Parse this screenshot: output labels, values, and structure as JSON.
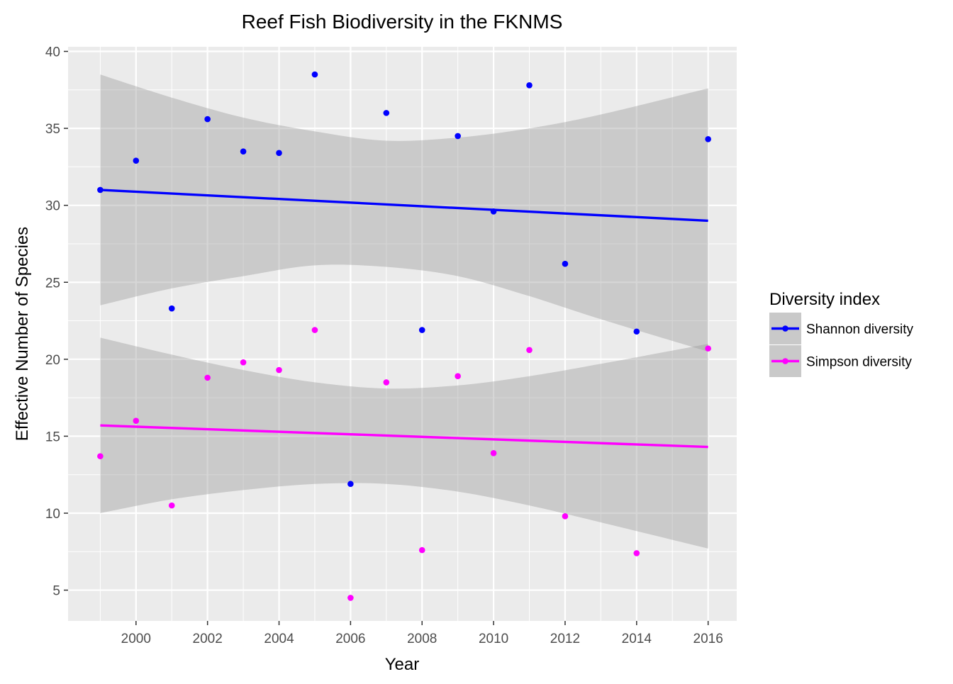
{
  "chart_data": {
    "type": "scatter",
    "title": "Reef Fish Biodiversity in the FKNMS",
    "xlabel": "Year",
    "ylabel": "Effective Number of Species",
    "xlim": [
      1998.1,
      2016.8
    ],
    "ylim": [
      3.0,
      40.3
    ],
    "x_ticks": [
      2000,
      2002,
      2004,
      2006,
      2008,
      2010,
      2012,
      2014,
      2016
    ],
    "y_ticks": [
      5,
      10,
      15,
      20,
      25,
      30,
      35,
      40
    ],
    "grid": true,
    "legend": {
      "title": "Diversity index",
      "position": "right"
    },
    "series": [
      {
        "name": "Shannon diversity",
        "color": "#0000ff",
        "points": [
          [
            1999,
            31.0
          ],
          [
            2000,
            32.9
          ],
          [
            2001,
            23.3
          ],
          [
            2002,
            35.6
          ],
          [
            2003,
            33.5
          ],
          [
            2004,
            33.4
          ],
          [
            2005,
            38.5
          ],
          [
            2006,
            11.9
          ],
          [
            2007,
            36.0
          ],
          [
            2008,
            21.9
          ],
          [
            2009,
            34.5
          ],
          [
            2010,
            29.6
          ],
          [
            2011,
            37.8
          ],
          [
            2012,
            26.2
          ],
          [
            2014,
            21.8
          ],
          [
            2016,
            34.3
          ]
        ],
        "trend": {
          "start": [
            1999,
            31.0
          ],
          "end": [
            2016,
            29.0
          ]
        },
        "band": [
          [
            1999,
            23.5,
            38.5
          ],
          [
            2001,
            24.6,
            37.0
          ],
          [
            2003,
            25.4,
            35.7
          ],
          [
            2005,
            26.1,
            34.8
          ],
          [
            2007,
            26.0,
            34.2
          ],
          [
            2009,
            25.4,
            34.4
          ],
          [
            2011,
            24.1,
            35.0
          ],
          [
            2013,
            22.6,
            35.9
          ],
          [
            2016,
            20.5,
            37.6
          ]
        ]
      },
      {
        "name": "Simpson diversity",
        "color": "#ff00ff",
        "points": [
          [
            1999,
            13.7
          ],
          [
            2000,
            16.0
          ],
          [
            2001,
            10.5
          ],
          [
            2002,
            18.8
          ],
          [
            2003,
            19.8
          ],
          [
            2004,
            19.3
          ],
          [
            2005,
            21.9
          ],
          [
            2006,
            4.5
          ],
          [
            2007,
            18.5
          ],
          [
            2008,
            7.6
          ],
          [
            2009,
            18.9
          ],
          [
            2010,
            13.9
          ],
          [
            2011,
            20.6
          ],
          [
            2012,
            9.8
          ],
          [
            2014,
            7.4
          ],
          [
            2016,
            20.7
          ]
        ],
        "trend": {
          "start": [
            1999,
            15.7
          ],
          "end": [
            2016,
            14.3
          ]
        },
        "band": [
          [
            1999,
            10.0,
            21.4
          ],
          [
            2001,
            10.9,
            20.3
          ],
          [
            2003,
            11.5,
            19.3
          ],
          [
            2005,
            11.9,
            18.5
          ],
          [
            2007,
            11.9,
            18.1
          ],
          [
            2009,
            11.4,
            18.3
          ],
          [
            2011,
            10.5,
            18.9
          ],
          [
            2013,
            9.4,
            19.7
          ],
          [
            2016,
            7.7,
            21.0
          ]
        ]
      }
    ]
  }
}
